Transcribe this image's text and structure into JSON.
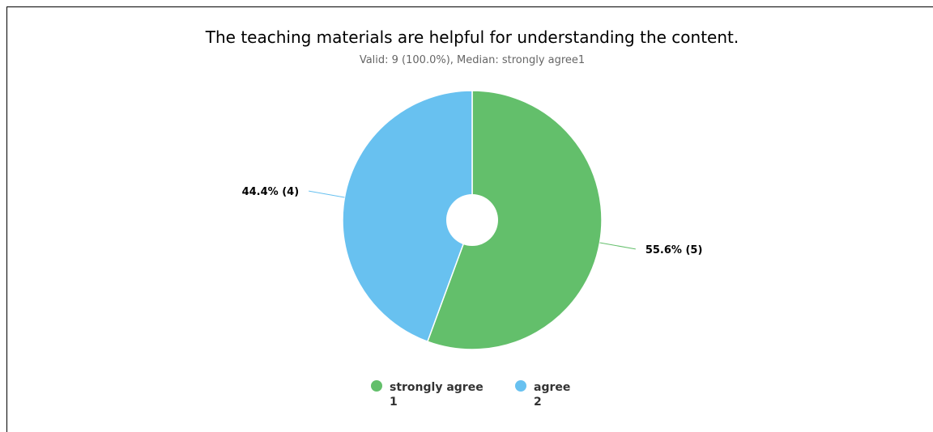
{
  "chart_data": {
    "type": "pie",
    "title": "The teaching materials are helpful for understanding the content.",
    "subtitle": "Valid: 9 (100.0%), Median: strongly agree1",
    "slices": [
      {
        "name": "strongly agree",
        "legend_code": "1",
        "percent": 55.6,
        "count": 5,
        "label": "55.6% (5)",
        "color": "#63bf6b"
      },
      {
        "name": "agree",
        "legend_code": "2",
        "percent": 44.4,
        "count": 4,
        "label": "44.4% (4)",
        "color": "#68c1f0"
      }
    ],
    "legend_placement": "bottom-center",
    "donut": true
  }
}
